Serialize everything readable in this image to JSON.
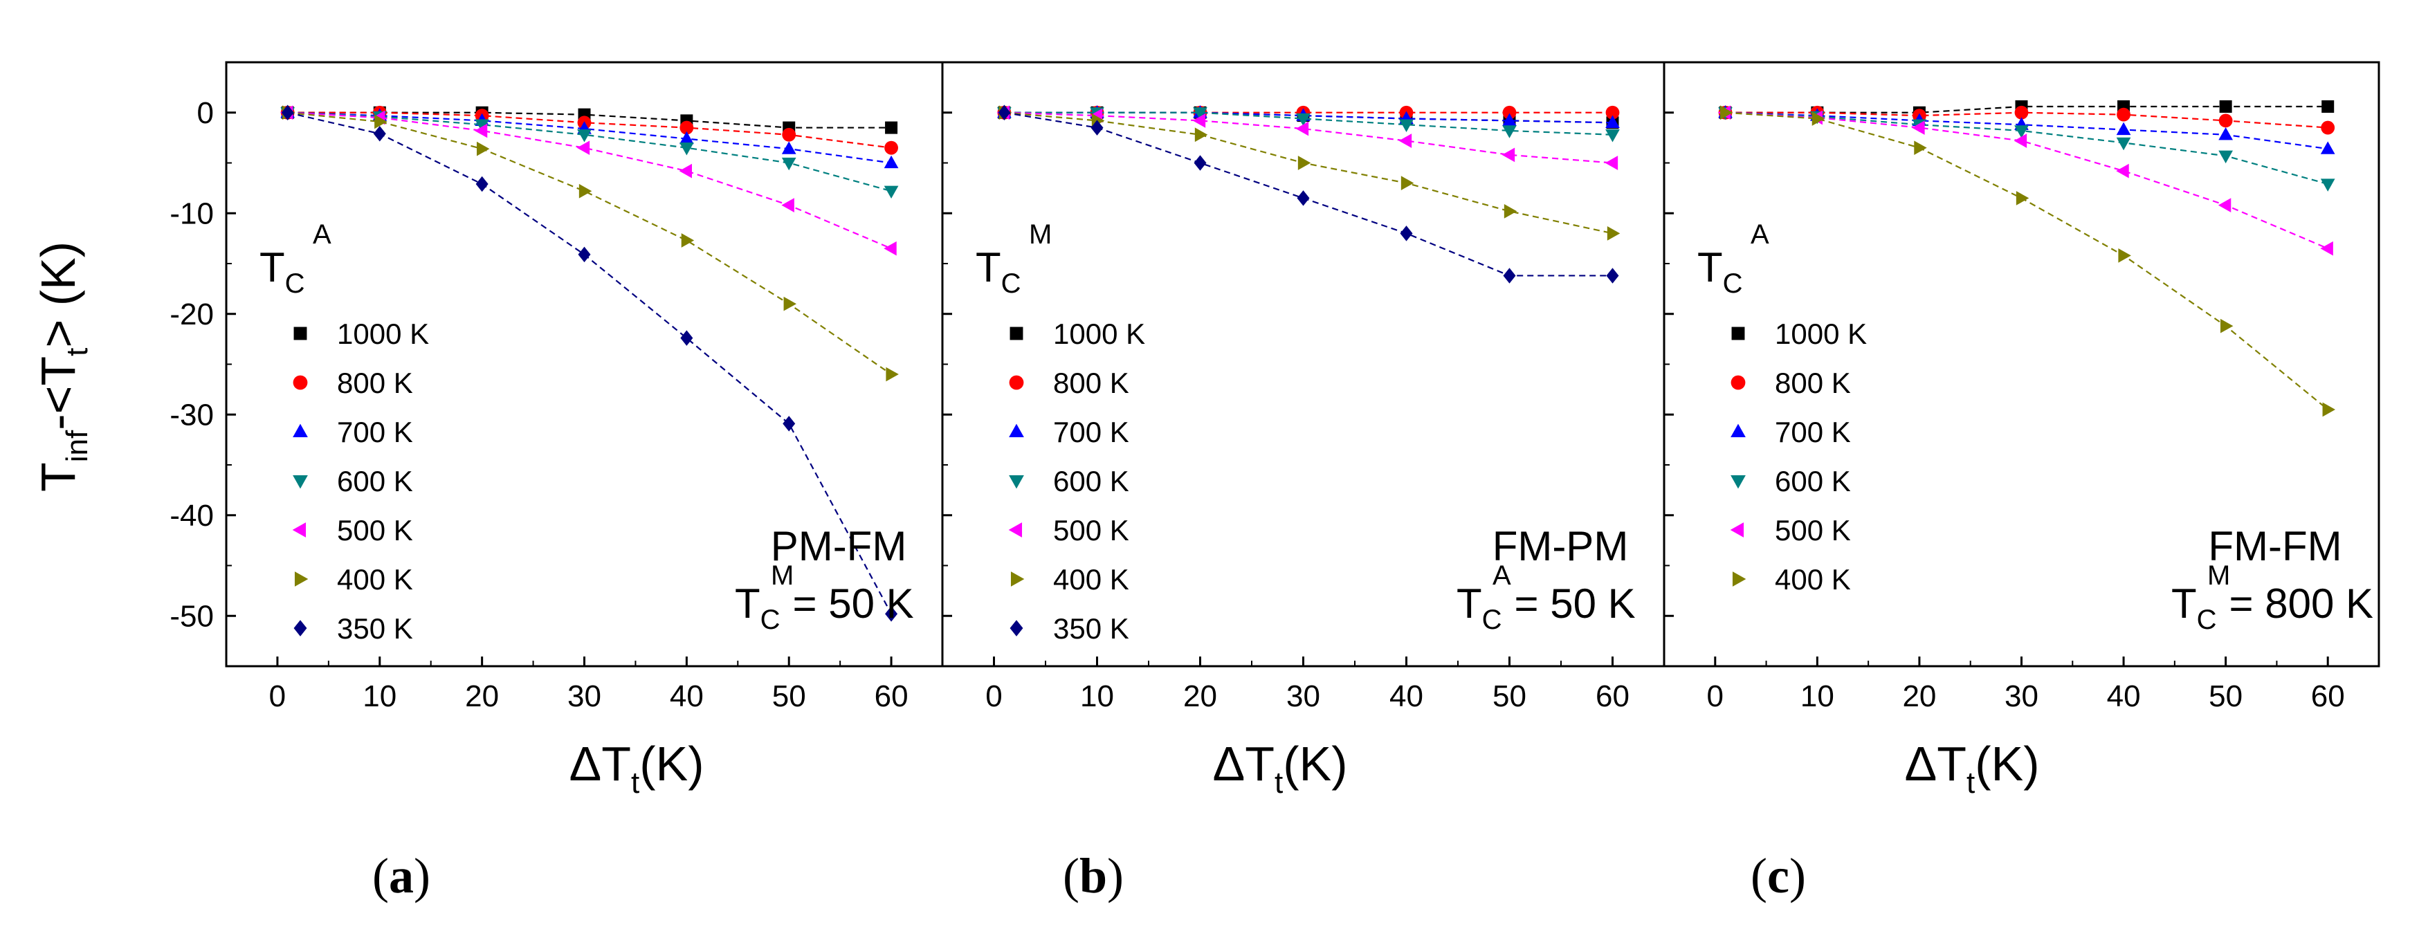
{
  "figure": {
    "y_axis_title": {
      "main": "T",
      "sub1": "inf",
      "mid": "-<T",
      "sub2": "t",
      "end": "> (K)"
    },
    "x_axis_title": {
      "main": "ΔT",
      "sub": "t",
      "end": "(K)"
    },
    "y_ticks": [
      "0",
      "-10",
      "-20",
      "-30",
      "-40",
      "-50"
    ],
    "x_ticks": [
      "0",
      "10",
      "20",
      "30",
      "40",
      "50",
      "60"
    ]
  },
  "colors": {
    "1000 K": "#000000",
    "800 K": "#ff0000",
    "700 K": "#0000ff",
    "600 K": "#008080",
    "500 K": "#ff00ff",
    "400 K": "#808000",
    "350 K": "#000080"
  },
  "chart_data": [
    {
      "type": "line",
      "panel_label": {
        "open": "(",
        "letter": "a",
        "close": ")"
      },
      "legend_title": {
        "main": "T",
        "sub": "C",
        "sup": "A"
      },
      "annotation": {
        "line1": "PM-FM",
        "main": "T",
        "sub": "C",
        "sup": "M",
        "rest": "= 50 K"
      },
      "xlim": [
        -5,
        65
      ],
      "ylim": [
        -55,
        5
      ],
      "grid": false,
      "legend_position": "left",
      "series": [
        {
          "name": "1000 K",
          "marker": "square",
          "x": [
            1,
            10,
            20,
            30,
            40,
            50,
            60
          ],
          "y": [
            0,
            0,
            0,
            -0.2,
            -0.8,
            -1.5,
            -1.5
          ]
        },
        {
          "name": "800 K",
          "marker": "circle",
          "x": [
            1,
            10,
            20,
            30,
            40,
            50,
            60
          ],
          "y": [
            0,
            0,
            -0.3,
            -1,
            -1.5,
            -2.2,
            -3.5
          ]
        },
        {
          "name": "700 K",
          "marker": "triangle-up",
          "x": [
            1,
            10,
            20,
            30,
            40,
            50,
            60
          ],
          "y": [
            0,
            -0.3,
            -0.8,
            -1.6,
            -2.6,
            -3.6,
            -5
          ]
        },
        {
          "name": "600 K",
          "marker": "triangle-down",
          "x": [
            1,
            10,
            20,
            30,
            40,
            50,
            60
          ],
          "y": [
            0,
            -0.4,
            -1.2,
            -2.2,
            -3.5,
            -5,
            -7.8
          ]
        },
        {
          "name": "500 K",
          "marker": "triangle-left",
          "x": [
            1,
            10,
            20,
            30,
            40,
            50,
            60
          ],
          "y": [
            0,
            -0.5,
            -1.8,
            -3.5,
            -5.8,
            -9.2,
            -13.5
          ]
        },
        {
          "name": "400 K",
          "marker": "triangle-right",
          "x": [
            1,
            10,
            20,
            30,
            40,
            50,
            60
          ],
          "y": [
            0,
            -0.9,
            -3.6,
            -7.8,
            -12.7,
            -19,
            -26
          ]
        },
        {
          "name": "350 K",
          "marker": "diamond",
          "x": [
            1,
            10,
            20,
            30,
            40,
            50,
            60
          ],
          "y": [
            0,
            -2.1,
            -7.1,
            -14.1,
            -22.4,
            -30.9,
            -49.8
          ]
        }
      ]
    },
    {
      "type": "line",
      "panel_label": {
        "open": "(",
        "letter": "b",
        "close": ")"
      },
      "legend_title": {
        "main": "T",
        "sub": "C",
        "sup": "M"
      },
      "annotation": {
        "line1": "FM-PM",
        "main": "T",
        "sub": "C",
        "sup": "A",
        "rest": "= 50 K"
      },
      "xlim": [
        -5,
        65
      ],
      "ylim": [
        -55,
        5
      ],
      "grid": false,
      "legend_position": "left",
      "series": [
        {
          "name": "1000 K",
          "marker": "square",
          "x": [
            1,
            10,
            20,
            30,
            40,
            50,
            60
          ],
          "y": [
            0,
            0,
            0,
            -0.3,
            -0.6,
            -0.8,
            -1
          ]
        },
        {
          "name": "800 K",
          "marker": "circle",
          "x": [
            1,
            10,
            20,
            30,
            40,
            50,
            60
          ],
          "y": [
            0,
            0,
            0,
            0,
            0,
            0,
            0
          ]
        },
        {
          "name": "700 K",
          "marker": "triangle-up",
          "x": [
            1,
            10,
            20,
            30,
            40,
            50,
            60
          ],
          "y": [
            0,
            0,
            0,
            -0.3,
            -0.6,
            -0.8,
            -1
          ]
        },
        {
          "name": "600 K",
          "marker": "triangle-down",
          "x": [
            1,
            10,
            20,
            30,
            40,
            50,
            60
          ],
          "y": [
            0,
            0,
            0,
            -0.6,
            -1.2,
            -1.8,
            -2.2
          ]
        },
        {
          "name": "500 K",
          "marker": "triangle-left",
          "x": [
            1,
            10,
            20,
            30,
            40,
            50,
            60
          ],
          "y": [
            0,
            -0.3,
            -0.8,
            -1.6,
            -2.8,
            -4.2,
            -5
          ]
        },
        {
          "name": "400 K",
          "marker": "triangle-right",
          "x": [
            1,
            10,
            20,
            30,
            40,
            50,
            60
          ],
          "y": [
            0,
            -0.8,
            -2.2,
            -5,
            -7,
            -9.8,
            -12
          ]
        },
        {
          "name": "350 K",
          "marker": "diamond",
          "x": [
            1,
            10,
            20,
            30,
            40,
            50,
            60
          ],
          "y": [
            0,
            -1.5,
            -5,
            -8.5,
            -12,
            -16.2,
            -16.2
          ]
        }
      ]
    },
    {
      "type": "line",
      "panel_label": {
        "open": "(",
        "letter": "c",
        "close": ")"
      },
      "legend_title": {
        "main": "T",
        "sub": "C",
        "sup": "A"
      },
      "annotation": {
        "line1": "FM-FM",
        "main": "T",
        "sub": "C",
        "sup": "M",
        "rest": "= 800 K"
      },
      "xlim": [
        -5,
        65
      ],
      "ylim": [
        -55,
        5
      ],
      "grid": false,
      "legend_position": "left",
      "series": [
        {
          "name": "1000 K",
          "marker": "square",
          "x": [
            1,
            10,
            20,
            30,
            40,
            50,
            60
          ],
          "y": [
            0,
            0,
            0,
            0.6,
            0.6,
            0.6,
            0.6
          ]
        },
        {
          "name": "800 K",
          "marker": "circle",
          "x": [
            1,
            10,
            20,
            30,
            40,
            50,
            60
          ],
          "y": [
            0,
            0,
            -0.3,
            0,
            -0.2,
            -0.8,
            -1.5
          ]
        },
        {
          "name": "700 K",
          "marker": "triangle-up",
          "x": [
            1,
            10,
            20,
            30,
            40,
            50,
            60
          ],
          "y": [
            0,
            -0.3,
            -0.8,
            -1.2,
            -1.7,
            -2.2,
            -3.6
          ]
        },
        {
          "name": "600 K",
          "marker": "triangle-down",
          "x": [
            1,
            10,
            20,
            30,
            40,
            50,
            60
          ],
          "y": [
            0,
            -0.4,
            -1.2,
            -1.8,
            -3,
            -4.3,
            -7.1
          ]
        },
        {
          "name": "500 K",
          "marker": "triangle-left",
          "x": [
            1,
            10,
            20,
            30,
            40,
            50,
            60
          ],
          "y": [
            0,
            -0.5,
            -1.5,
            -2.8,
            -5.8,
            -9.2,
            -13.5
          ]
        },
        {
          "name": "400 K",
          "marker": "triangle-right",
          "x": [
            1,
            10,
            20,
            30,
            40,
            50,
            60
          ],
          "y": [
            0,
            -0.6,
            -3.5,
            -8.5,
            -14.2,
            -21.2,
            -29.5
          ]
        }
      ]
    }
  ]
}
